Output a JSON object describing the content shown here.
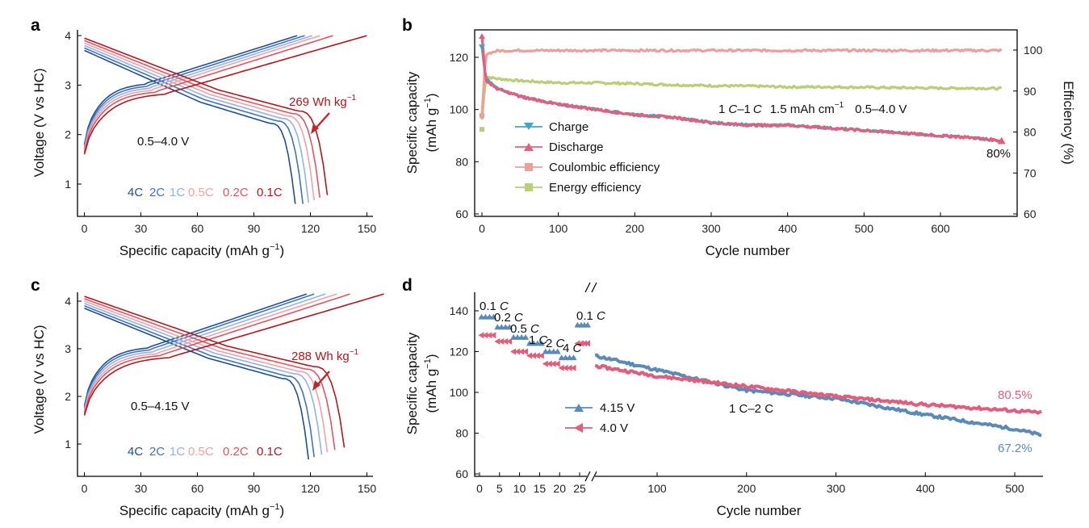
{
  "colors": {
    "c4": "#1f4f8f",
    "c2": "#3f73c0",
    "c1": "#8fb3e6",
    "c05": "#f2a1a6",
    "c02": "#e0555f",
    "c01": "#b3161e",
    "charge": "#3ea8b8",
    "discharge": "#e45f7e",
    "ce": "#eba09a",
    "ee": "#b8cf78",
    "v415": "#5a8bb8",
    "v40": "#e25d7c",
    "arrow": "#c0262d"
  },
  "panels": {
    "a": {
      "letter": "a",
      "xlabel_pre": "Specific capacity (mAh g",
      "xlabel_sup": "−1",
      "xlabel_post": ")",
      "ylabel": "Voltage (V vs HC)",
      "xticks": [
        "0",
        "30",
        "60",
        "90",
        "120",
        "150"
      ],
      "yticks": [
        "1",
        "2",
        "3",
        "4"
      ],
      "energy": "269 Wh kg",
      "energy_sup": "−1",
      "window": "0.5–4.0 V",
      "rates": [
        "4C",
        "2C",
        "1C",
        "0.5C",
        "0.2C",
        "0.1C"
      ]
    },
    "b": {
      "letter": "b",
      "xlabel": "Cycle number",
      "ylabel_line1": "Specific capacity",
      "ylabel_line2_pre": "(mAh g",
      "ylabel_line2_sup": "−1",
      "ylabel_line2_post": ")",
      "y2label": "Efficiency (%)",
      "xticks": [
        "0",
        "100",
        "200",
        "300",
        "400",
        "500",
        "600"
      ],
      "yticks": [
        "60",
        "80",
        "100",
        "120"
      ],
      "y2ticks": [
        "60",
        "70",
        "80",
        "90",
        "100"
      ],
      "condition_rate_1": "1",
      "condition_c1": "C",
      "condition_dash": "–1",
      "condition_c2": "C",
      "condition_areal_pre": "1.5 mAh cm",
      "condition_areal_sup": "−1",
      "condition_window": "0.5–4.0 V",
      "retention": "80%",
      "legend": [
        "Charge",
        "Discharge",
        "Coulombic efficiency",
        "Energy efficiency"
      ]
    },
    "c": {
      "letter": "c",
      "xlabel_pre": "Specific capacity (mAh g",
      "xlabel_sup": "−1",
      "xlabel_post": ")",
      "ylabel": "Voltage (V vs HC)",
      "xticks": [
        "0",
        "30",
        "60",
        "90",
        "120",
        "150"
      ],
      "yticks": [
        "1",
        "2",
        "3",
        "4"
      ],
      "energy": "288 Wh kg",
      "energy_sup": "−1",
      "window": "0.5–4.15 V",
      "rates": [
        "4C",
        "2C",
        "1C",
        "0.5C",
        "0.2C",
        "0.1C"
      ]
    },
    "d": {
      "letter": "d",
      "xlabel": "Cycle number",
      "ylabel_line1": "Specific capacity",
      "ylabel_line2_pre": "(mAh g",
      "ylabel_line2_sup": "−1",
      "ylabel_line2_post": ")",
      "xticks_left": [
        "0",
        "5",
        "10",
        "15",
        "20",
        "25"
      ],
      "xticks_right": [
        "100",
        "200",
        "300",
        "400",
        "500"
      ],
      "yticks": [
        "60",
        "80",
        "100",
        "120",
        "140"
      ],
      "rate_labels": [
        "0.1 C",
        "0.2 C",
        "0.5 C",
        "1 C",
        "2 C",
        "4 C",
        "0.1 C"
      ],
      "cycling_label": "1 C–2 C",
      "legend": [
        "4.15 V",
        "4.0 V"
      ],
      "retention_40": "80.5%",
      "retention_415": "67.2%"
    }
  },
  "chart_data": [
    {
      "panel": "a",
      "type": "line",
      "title": "",
      "xlabel": "Specific capacity (mAh g−1)",
      "ylabel": "Voltage (V vs HC)",
      "xlim": [
        -5,
        150
      ],
      "ylim": [
        0.5,
        4.1
      ],
      "series": [
        {
          "name": "4C",
          "color": "#1f4f8f",
          "capacity": 112
        },
        {
          "name": "2C",
          "color": "#3f73c0",
          "capacity": 116
        },
        {
          "name": "1C",
          "color": "#8fb3e6",
          "capacity": 119
        },
        {
          "name": "0.5C",
          "color": "#f2a1a6",
          "capacity": 122
        },
        {
          "name": "0.2C",
          "color": "#e0555f",
          "capacity": 125
        },
        {
          "name": "0.1C",
          "color": "#b3161e",
          "capacity": 129
        }
      ],
      "charge_end_capacity": [
        113,
        117,
        121,
        125,
        132,
        150
      ],
      "annotations": [
        "269 Wh kg−1",
        "0.5–4.0 V"
      ]
    },
    {
      "panel": "b",
      "type": "line",
      "title": "",
      "xlabel": "Cycle number",
      "ylabel": "Specific capacity (mAh g−1)",
      "y2label": "Efficiency (%)",
      "xlim": [
        -5,
        690
      ],
      "ylim": [
        60,
        130
      ],
      "y2lim": [
        60,
        105
      ],
      "x": [
        0,
        5,
        20,
        50,
        100,
        150,
        200,
        250,
        300,
        350,
        400,
        450,
        500,
        550,
        600,
        650,
        680
      ],
      "series": [
        {
          "name": "Charge",
          "axis": "left",
          "values": [
            124,
            112,
            108,
            105,
            102,
            100,
            98,
            97,
            95,
            94,
            94,
            93,
            92,
            91,
            90,
            89,
            88
          ]
        },
        {
          "name": "Discharge",
          "axis": "left",
          "values": [
            128,
            111,
            108,
            105,
            102,
            100,
            98,
            97,
            95,
            94,
            94,
            93,
            92,
            91,
            90,
            89,
            88
          ]
        },
        {
          "name": "Coulombic efficiency",
          "axis": "right",
          "values": [
            84,
            99,
            99.8,
            99.9,
            99.9,
            99.9,
            99.9,
            99.9,
            99.9,
            99.9,
            99.9,
            99.9,
            99.9,
            99.9,
            99.9,
            99.9,
            99.9
          ]
        },
        {
          "name": "Energy efficiency",
          "axis": "right",
          "values": [
            83,
            93.5,
            93,
            92.5,
            92,
            92,
            91.8,
            91.5,
            91.3,
            91.2,
            91,
            91,
            90.9,
            90.8,
            90.7,
            90.7,
            90.6
          ]
        }
      ],
      "annotations": [
        "1 C–1 C 1.5 mAh cm−1 0.5–4.0 V",
        "80%"
      ]
    },
    {
      "panel": "c",
      "type": "line",
      "title": "",
      "xlabel": "Specific capacity (mAh g−1)",
      "ylabel": "Voltage (V vs HC)",
      "xlim": [
        -5,
        160
      ],
      "ylim": [
        0.5,
        4.25
      ],
      "series": [
        {
          "name": "4C",
          "color": "#1f4f8f",
          "capacity": 119
        },
        {
          "name": "2C",
          "color": "#3f73c0",
          "capacity": 122
        },
        {
          "name": "1C",
          "color": "#8fb3e6",
          "capacity": 126
        },
        {
          "name": "0.5C",
          "color": "#f2a1a6",
          "capacity": 129
        },
        {
          "name": "0.2C",
          "color": "#e0555f",
          "capacity": 133
        },
        {
          "name": "0.1C",
          "color": "#b3161e",
          "capacity": 138
        }
      ],
      "charge_end_capacity": [
        118,
        122,
        128,
        134,
        141,
        159
      ],
      "annotations": [
        "288 Wh kg−1",
        "0.5–4.15 V"
      ]
    },
    {
      "panel": "d",
      "type": "line",
      "title": "",
      "xlabel": "Cycle number",
      "ylabel": "Specific capacity (mAh g−1)",
      "xlim_left": [
        0,
        25
      ],
      "xlim_right": [
        25,
        530
      ],
      "ylim": [
        60,
        150
      ],
      "rate_steps": [
        {
          "rate": "0.1 C",
          "cycles": [
            0,
            4
          ],
          "v415": 137,
          "v40": 128
        },
        {
          "rate": "0.2 C",
          "cycles": [
            4,
            8
          ],
          "v415": 132,
          "v40": 125
        },
        {
          "rate": "0.5 C",
          "cycles": [
            8,
            12
          ],
          "v415": 127,
          "v40": 120
        },
        {
          "rate": "1 C",
          "cycles": [
            12,
            16
          ],
          "v415": 124,
          "v40": 118
        },
        {
          "rate": "2 C",
          "cycles": [
            16,
            20
          ],
          "v415": 120,
          "v40": 114
        },
        {
          "rate": "4 C",
          "cycles": [
            20,
            24
          ],
          "v415": 117,
          "v40": 112
        },
        {
          "rate": "0.1 C",
          "cycles": [
            24,
            28
          ],
          "v415": 133,
          "v40": 124
        }
      ],
      "x": [
        30,
        100,
        200,
        300,
        400,
        500,
        530
      ],
      "series": [
        {
          "name": "4.15 V",
          "values": [
            118,
            111,
            101,
            97,
            89,
            82,
            79
          ]
        },
        {
          "name": "4.0 V",
          "values": [
            113,
            108,
            103,
            98,
            94,
            91,
            90
          ]
        }
      ],
      "annotations": [
        "1 C–2 C",
        "80.5%",
        "67.2%"
      ]
    }
  ]
}
